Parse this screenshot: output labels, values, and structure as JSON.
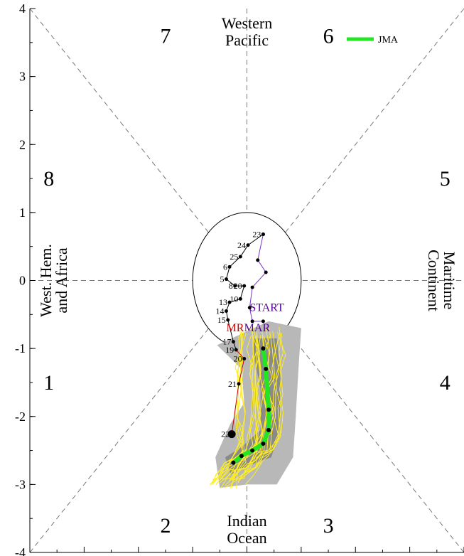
{
  "chart_data": {
    "type": "line",
    "title": "",
    "xlim": [
      -4,
      4
    ],
    "ylim": [
      -4,
      4
    ],
    "y_ticks": [
      4,
      3,
      2,
      1,
      0,
      -1,
      -2,
      -3,
      -4
    ],
    "y_tick_labels": [
      "4",
      "3",
      "2",
      "1",
      "0",
      "-1",
      "-2",
      "-3",
      "-4"
    ],
    "phases": [
      {
        "label": "1",
        "x": -3.65,
        "y": -1.5
      },
      {
        "label": "2",
        "x": -1.5,
        "y": -3.6
      },
      {
        "label": "3",
        "x": 1.5,
        "y": -3.6
      },
      {
        "label": "4",
        "x": 3.65,
        "y": -1.5
      },
      {
        "label": "5",
        "x": 3.65,
        "y": 1.5
      },
      {
        "label": "6",
        "x": 1.5,
        "y": 3.6
      },
      {
        "label": "7",
        "x": -1.5,
        "y": 3.6
      },
      {
        "label": "8",
        "x": -3.65,
        "y": 1.5
      }
    ],
    "regions": {
      "top": [
        "Western",
        "Pacific"
      ],
      "bottom": [
        "Indian",
        "Ocean"
      ],
      "left": [
        "West. Hem.",
        "and Africa"
      ],
      "right": [
        "Maritime",
        "Continent"
      ]
    },
    "legend": {
      "label": "JMA",
      "color": "#22e622",
      "position": "top-right"
    },
    "annotations": [
      {
        "text": "START",
        "x": 0.05,
        "y": -0.45,
        "color": "#550099"
      },
      {
        "text": "MAR",
        "x": -0.05,
        "y": -0.75,
        "color": "#550099"
      },
      {
        "text": "MR",
        "x": -0.38,
        "y": -0.75,
        "color": "#cc0000"
      }
    ],
    "series": [
      {
        "type": "observed-black",
        "color": "#000000",
        "points": [
          {
            "label": "23",
            "x": 0.3,
            "y": 0.68
          },
          {
            "label": "24",
            "x": 0.02,
            "y": 0.52
          },
          {
            "label": "25",
            "x": -0.12,
            "y": 0.35
          },
          {
            "label": "6",
            "x": -0.32,
            "y": 0.2
          },
          {
            "label": "5",
            "x": -0.38,
            "y": 0.02
          },
          {
            "label": "8",
            "x": -0.22,
            "y": -0.08
          },
          {
            "label": "20",
            "x": -0.05,
            "y": -0.08
          },
          {
            "label": "10",
            "x": -0.12,
            "y": -0.27
          },
          {
            "label": "13",
            "x": -0.32,
            "y": -0.32
          },
          {
            "label": "14",
            "x": -0.38,
            "y": -0.45
          },
          {
            "label": "15",
            "x": -0.35,
            "y": -0.58
          },
          {
            "label": "17",
            "x": -0.25,
            "y": -0.9
          },
          {
            "label": "19",
            "x": -0.2,
            "y": -1.02
          },
          {
            "label": "20",
            "x": -0.05,
            "y": -1.15
          },
          {
            "label": "21",
            "x": -0.15,
            "y": -1.52
          },
          {
            "label": "22",
            "x": -0.28,
            "y": -2.26
          }
        ]
      },
      {
        "type": "observed-purple",
        "color": "#7733cc",
        "points": [
          {
            "label": "",
            "x": 0.3,
            "y": 0.68
          },
          {
            "label": "",
            "x": 0.2,
            "y": 0.3
          },
          {
            "label": "",
            "x": 0.35,
            "y": 0.12
          },
          {
            "label": "",
            "x": 0.1,
            "y": -0.1
          },
          {
            "label": "",
            "x": 0.05,
            "y": -0.4
          },
          {
            "label": "",
            "x": 0.1,
            "y": -0.6
          },
          {
            "label": "",
            "x": 0.3,
            "y": -0.6
          }
        ]
      },
      {
        "type": "forecast-ensemble-mean",
        "name": "JMA",
        "color": "#22e622",
        "points": [
          {
            "x": 0.3,
            "y": -1.0
          },
          {
            "x": 0.35,
            "y": -1.3
          },
          {
            "x": 0.4,
            "y": -1.9
          },
          {
            "x": 0.4,
            "y": -2.2
          },
          {
            "x": 0.3,
            "y": -2.4
          },
          {
            "x": 0.1,
            "y": -2.5
          },
          {
            "x": -0.1,
            "y": -2.58
          },
          {
            "x": -0.25,
            "y": -2.68
          }
        ]
      }
    ]
  }
}
